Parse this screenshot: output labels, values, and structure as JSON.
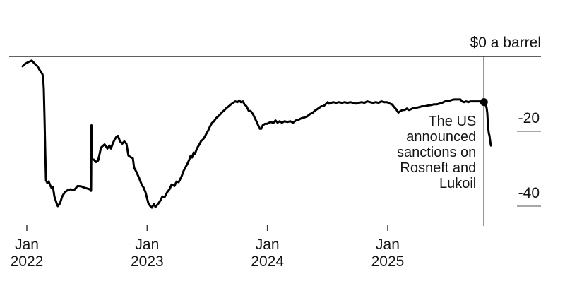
{
  "chart_data": {
    "type": "line",
    "y_axis": {
      "zero_label": "$0 a barrel",
      "ticks": [
        {
          "value": -20,
          "label": "-20"
        },
        {
          "value": -40,
          "label": "-40"
        }
      ],
      "ylim": [
        -45,
        0
      ]
    },
    "x_axis": {
      "ticks": [
        {
          "t": 2022.0,
          "month": "Jan",
          "year": "2022"
        },
        {
          "t": 2023.0,
          "month": "Jan",
          "year": "2023"
        },
        {
          "t": 2024.0,
          "month": "Jan",
          "year": "2024"
        },
        {
          "t": 2025.0,
          "month": "Jan",
          "year": "2025"
        }
      ],
      "xlim": [
        2021.95,
        2026.25
      ]
    },
    "annotation": {
      "text_lines": [
        "The US",
        "announced",
        "sanctions on",
        "Rosneft and",
        "Lukoil"
      ],
      "event_t": 2025.8,
      "event_value": -12.2
    },
    "colors": {
      "line": "#000000",
      "axis": "#2b2b2b",
      "y_tick": "#8c8c8c",
      "text": "#141414"
    },
    "series": [
      {
        "color": "#000000",
        "points": [
          [
            2021.965,
            -2.6
          ],
          [
            2021.988,
            -1.9
          ],
          [
            2022.012,
            -1.5
          ],
          [
            2022.041,
            -1.1
          ],
          [
            2022.065,
            -1.9
          ],
          [
            2022.088,
            -2.6
          ],
          [
            2022.106,
            -3.6
          ],
          [
            2022.117,
            -4.1
          ],
          [
            2022.129,
            -4.7
          ],
          [
            2022.135,
            -5.4
          ],
          [
            2022.141,
            -8.6
          ],
          [
            2022.147,
            -16.2
          ],
          [
            2022.153,
            -25.5
          ],
          [
            2022.159,
            -33.1
          ],
          [
            2022.17,
            -33.8
          ],
          [
            2022.182,
            -33.4
          ],
          [
            2022.194,
            -34.4
          ],
          [
            2022.205,
            -35.1
          ],
          [
            2022.217,
            -34.9
          ],
          [
            2022.229,
            -37.4
          ],
          [
            2022.247,
            -39.2
          ],
          [
            2022.258,
            -40.0
          ],
          [
            2022.276,
            -39.2
          ],
          [
            2022.294,
            -37.4
          ],
          [
            2022.317,
            -36.2
          ],
          [
            2022.341,
            -35.7
          ],
          [
            2022.364,
            -35.5
          ],
          [
            2022.393,
            -35.7
          ],
          [
            2022.423,
            -34.6
          ],
          [
            2022.452,
            -34.7
          ],
          [
            2022.481,
            -35.1
          ],
          [
            2022.505,
            -35.3
          ],
          [
            2022.523,
            -35.5
          ],
          [
            2022.534,
            -35.9
          ],
          [
            2022.537,
            -18.4
          ],
          [
            2022.543,
            -27.4
          ],
          [
            2022.558,
            -27.6
          ],
          [
            2022.575,
            -28.2
          ],
          [
            2022.593,
            -27.8
          ],
          [
            2022.605,
            -26.1
          ],
          [
            2022.616,
            -24.4
          ],
          [
            2022.628,
            -24.0
          ],
          [
            2022.646,
            -23.5
          ],
          [
            2022.658,
            -24.0
          ],
          [
            2022.669,
            -24.6
          ],
          [
            2022.687,
            -23.8
          ],
          [
            2022.699,
            -24.6
          ],
          [
            2022.716,
            -23.1
          ],
          [
            2022.734,
            -22.0
          ],
          [
            2022.746,
            -21.4
          ],
          [
            2022.757,
            -21.2
          ],
          [
            2022.775,
            -22.7
          ],
          [
            2022.793,
            -23.3
          ],
          [
            2022.81,
            -22.7
          ],
          [
            2022.828,
            -23.3
          ],
          [
            2022.845,
            -26.5
          ],
          [
            2022.863,
            -26.9
          ],
          [
            2022.881,
            -27.2
          ],
          [
            2022.892,
            -29.7
          ],
          [
            2022.91,
            -30.8
          ],
          [
            2022.928,
            -32.1
          ],
          [
            2022.939,
            -32.9
          ],
          [
            2022.957,
            -34.4
          ],
          [
            2022.969,
            -34.9
          ],
          [
            2022.986,
            -36.2
          ],
          [
            2022.998,
            -37.7
          ],
          [
            2023.01,
            -39.2
          ],
          [
            2023.027,
            -40.0
          ],
          [
            2023.039,
            -40.4
          ],
          [
            2023.057,
            -39.4
          ],
          [
            2023.069,
            -40.2
          ],
          [
            2023.08,
            -39.8
          ],
          [
            2023.098,
            -39.1
          ],
          [
            2023.11,
            -38.5
          ],
          [
            2023.127,
            -37.4
          ],
          [
            2023.145,
            -37.6
          ],
          [
            2023.168,
            -36.2
          ],
          [
            2023.186,
            -35.5
          ],
          [
            2023.204,
            -34.2
          ],
          [
            2023.227,
            -34.6
          ],
          [
            2023.245,
            -33.4
          ],
          [
            2023.262,
            -33.6
          ],
          [
            2023.286,
            -32.1
          ],
          [
            2023.303,
            -30.6
          ],
          [
            2023.321,
            -29.5
          ],
          [
            2023.339,
            -28.4
          ],
          [
            2023.35,
            -27.6
          ],
          [
            2023.362,
            -26.5
          ],
          [
            2023.374,
            -27.0
          ],
          [
            2023.386,
            -25.7
          ],
          [
            2023.397,
            -26.1
          ],
          [
            2023.409,
            -25.0
          ],
          [
            2023.421,
            -24.2
          ],
          [
            2023.438,
            -23.3
          ],
          [
            2023.45,
            -22.5
          ],
          [
            2023.462,
            -22.3
          ],
          [
            2023.48,
            -21.4
          ],
          [
            2023.491,
            -20.7
          ],
          [
            2023.509,
            -19.7
          ],
          [
            2023.521,
            -18.8
          ],
          [
            2023.538,
            -17.8
          ],
          [
            2023.556,
            -17.3
          ],
          [
            2023.573,
            -16.5
          ],
          [
            2023.591,
            -16.0
          ],
          [
            2023.609,
            -15.4
          ],
          [
            2023.626,
            -14.8
          ],
          [
            2023.644,
            -14.3
          ],
          [
            2023.662,
            -13.7
          ],
          [
            2023.679,
            -13.3
          ],
          [
            2023.697,
            -12.8
          ],
          [
            2023.714,
            -12.4
          ],
          [
            2023.732,
            -12.0
          ],
          [
            2023.75,
            -12.2
          ],
          [
            2023.767,
            -11.8
          ],
          [
            2023.779,
            -12.2
          ],
          [
            2023.797,
            -12.0
          ],
          [
            2023.808,
            -12.8
          ],
          [
            2023.826,
            -13.3
          ],
          [
            2023.844,
            -14.5
          ],
          [
            2023.861,
            -14.6
          ],
          [
            2023.879,
            -15.4
          ],
          [
            2023.896,
            -16.5
          ],
          [
            2023.914,
            -17.7
          ],
          [
            2023.926,
            -18.6
          ],
          [
            2023.937,
            -19.3
          ],
          [
            2023.949,
            -19.3
          ],
          [
            2023.961,
            -18.4
          ],
          [
            2023.979,
            -18.0
          ],
          [
            2023.996,
            -18.0
          ],
          [
            2024.014,
            -17.7
          ],
          [
            2024.031,
            -17.5
          ],
          [
            2024.049,
            -17.8
          ],
          [
            2024.067,
            -17.1
          ],
          [
            2024.084,
            -17.7
          ],
          [
            2024.102,
            -17.3
          ],
          [
            2024.12,
            -17.7
          ],
          [
            2024.143,
            -17.3
          ],
          [
            2024.166,
            -17.5
          ],
          [
            2024.19,
            -17.3
          ],
          [
            2024.213,
            -17.7
          ],
          [
            2024.237,
            -17.1
          ],
          [
            2024.26,
            -16.9
          ],
          [
            2024.284,
            -16.5
          ],
          [
            2024.307,
            -16.3
          ],
          [
            2024.331,
            -16.0
          ],
          [
            2024.354,
            -15.4
          ],
          [
            2024.378,
            -15.0
          ],
          [
            2024.395,
            -14.5
          ],
          [
            2024.413,
            -14.1
          ],
          [
            2024.431,
            -13.7
          ],
          [
            2024.448,
            -13.3
          ],
          [
            2024.466,
            -13.3
          ],
          [
            2024.483,
            -12.8
          ],
          [
            2024.501,
            -12.2
          ],
          [
            2024.513,
            -12.6
          ],
          [
            2024.53,
            -12.4
          ],
          [
            2024.548,
            -12.2
          ],
          [
            2024.571,
            -12.4
          ],
          [
            2024.595,
            -12.2
          ],
          [
            2024.618,
            -12.4
          ],
          [
            2024.642,
            -12.2
          ],
          [
            2024.665,
            -12.4
          ],
          [
            2024.689,
            -12.2
          ],
          [
            2024.712,
            -12.4
          ],
          [
            2024.736,
            -12.6
          ],
          [
            2024.759,
            -12.4
          ],
          [
            2024.783,
            -12.2
          ],
          [
            2024.806,
            -12.4
          ],
          [
            2024.83,
            -12.0
          ],
          [
            2024.853,
            -12.2
          ],
          [
            2024.877,
            -12.4
          ],
          [
            2024.9,
            -12.2
          ],
          [
            2024.924,
            -12.4
          ],
          [
            2024.947,
            -12.0
          ],
          [
            2024.971,
            -12.2
          ],
          [
            2024.994,
            -12.2
          ],
          [
            2025.018,
            -12.6
          ],
          [
            2025.035,
            -12.8
          ],
          [
            2025.053,
            -13.5
          ],
          [
            2025.07,
            -14.1
          ],
          [
            2025.088,
            -15.0
          ],
          [
            2025.106,
            -14.6
          ],
          [
            2025.123,
            -14.3
          ],
          [
            2025.141,
            -14.3
          ],
          [
            2025.159,
            -13.9
          ],
          [
            2025.176,
            -14.3
          ],
          [
            2025.194,
            -14.1
          ],
          [
            2025.217,
            -13.7
          ],
          [
            2025.241,
            -13.7
          ],
          [
            2025.264,
            -13.5
          ],
          [
            2025.288,
            -13.3
          ],
          [
            2025.311,
            -13.3
          ],
          [
            2025.335,
            -13.1
          ],
          [
            2025.358,
            -13.0
          ],
          [
            2025.382,
            -12.8
          ],
          [
            2025.405,
            -12.8
          ],
          [
            2025.429,
            -12.6
          ],
          [
            2025.452,
            -12.4
          ],
          [
            2025.476,
            -12.0
          ],
          [
            2025.499,
            -11.8
          ],
          [
            2025.517,
            -11.8
          ],
          [
            2025.535,
            -11.6
          ],
          [
            2025.552,
            -11.5
          ],
          [
            2025.57,
            -11.5
          ],
          [
            2025.587,
            -11.5
          ],
          [
            2025.605,
            -11.5
          ],
          [
            2025.617,
            -12.0
          ],
          [
            2025.634,
            -12.2
          ],
          [
            2025.652,
            -12.0
          ],
          [
            2025.67,
            -12.2
          ],
          [
            2025.687,
            -12.0
          ],
          [
            2025.711,
            -12.0
          ],
          [
            2025.734,
            -12.0
          ],
          [
            2025.758,
            -12.0
          ],
          [
            2025.781,
            -12.0
          ],
          [
            2025.799,
            -12.2
          ],
          [
            2025.811,
            -12.8
          ],
          [
            2025.822,
            -13.7
          ],
          [
            2025.828,
            -15.2
          ],
          [
            2025.834,
            -18.6
          ],
          [
            2025.84,
            -20.5
          ],
          [
            2025.846,
            -21.2
          ],
          [
            2025.852,
            -22.7
          ],
          [
            2025.858,
            -23.8
          ]
        ]
      }
    ]
  }
}
